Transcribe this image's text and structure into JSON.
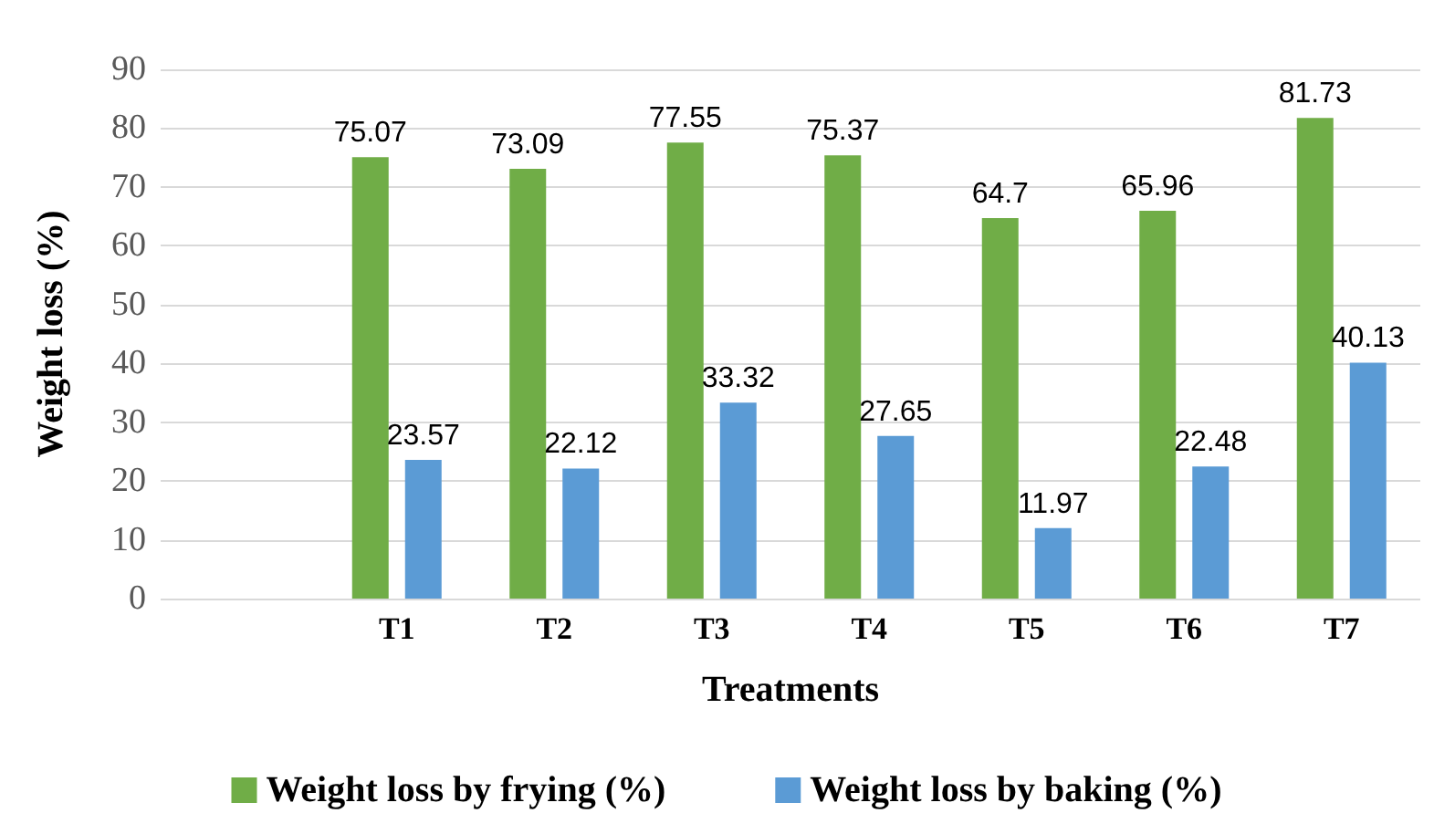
{
  "chart_data": {
    "type": "bar",
    "xlabel": "Treatments",
    "ylabel": "Weight loss (%)",
    "categories": [
      null,
      "T1",
      "T2",
      "T3",
      "T4",
      "T5",
      "T6",
      "T7"
    ],
    "series": [
      {
        "name": "Weight loss by frying (%)",
        "color": "#70ad47",
        "values": [
          null,
          75.07,
          73.09,
          77.55,
          75.37,
          64.7,
          65.96,
          81.73
        ]
      },
      {
        "name": "Weight loss by baking (%)",
        "color": "#5b9bd5",
        "values": [
          null,
          23.57,
          22.12,
          33.32,
          27.65,
          11.97,
          22.48,
          40.13
        ]
      }
    ],
    "ylim": [
      0,
      90
    ],
    "yticks": [
      0,
      10,
      20,
      30,
      40,
      50,
      60,
      70,
      80,
      90
    ],
    "grid": "y",
    "legend": "bottom",
    "data_labels": true
  }
}
